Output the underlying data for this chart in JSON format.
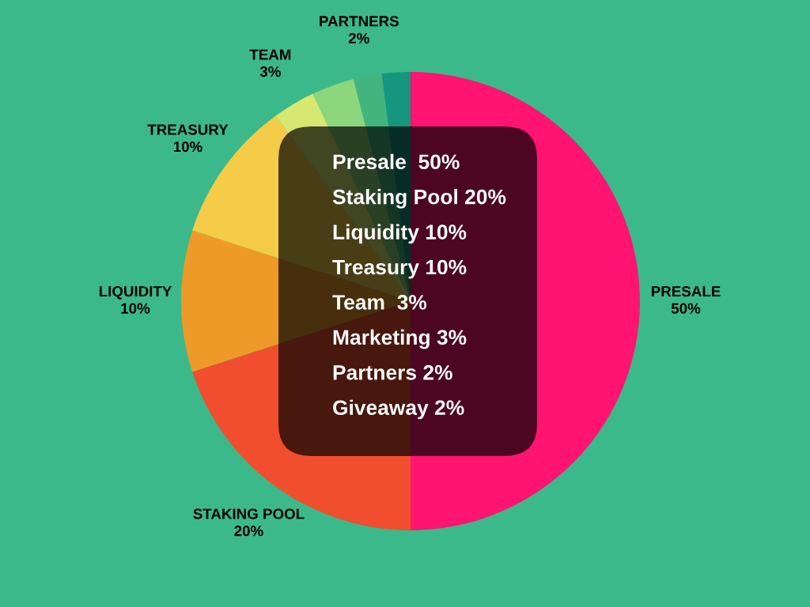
{
  "chart_data": {
    "type": "pie",
    "categories": [
      "PRESALE",
      "STAKING POOL",
      "LIQUIDITY",
      "TREASURY",
      "TEAM",
      null,
      "PARTNERS",
      null
    ],
    "values": [
      50,
      20,
      10,
      10,
      3,
      3,
      2,
      2
    ],
    "value_labels": [
      "50%",
      "20%",
      "10%",
      "10%",
      "3%",
      null,
      "2%",
      null
    ],
    "colors": [
      "#ff1472",
      "#f04e2e",
      "#ee9a28",
      "#f4cc48",
      "#d6e872",
      "#8cd67c",
      "#44b47e",
      "#16967e"
    ],
    "annotations": [
      "Presale  50%",
      "Staking Pool 20%",
      "Liquidity 10%",
      "Treasury 10%",
      "Team  3%",
      "Marketing 3%",
      "Partners 2%",
      "Giveaway 2%"
    ]
  }
}
